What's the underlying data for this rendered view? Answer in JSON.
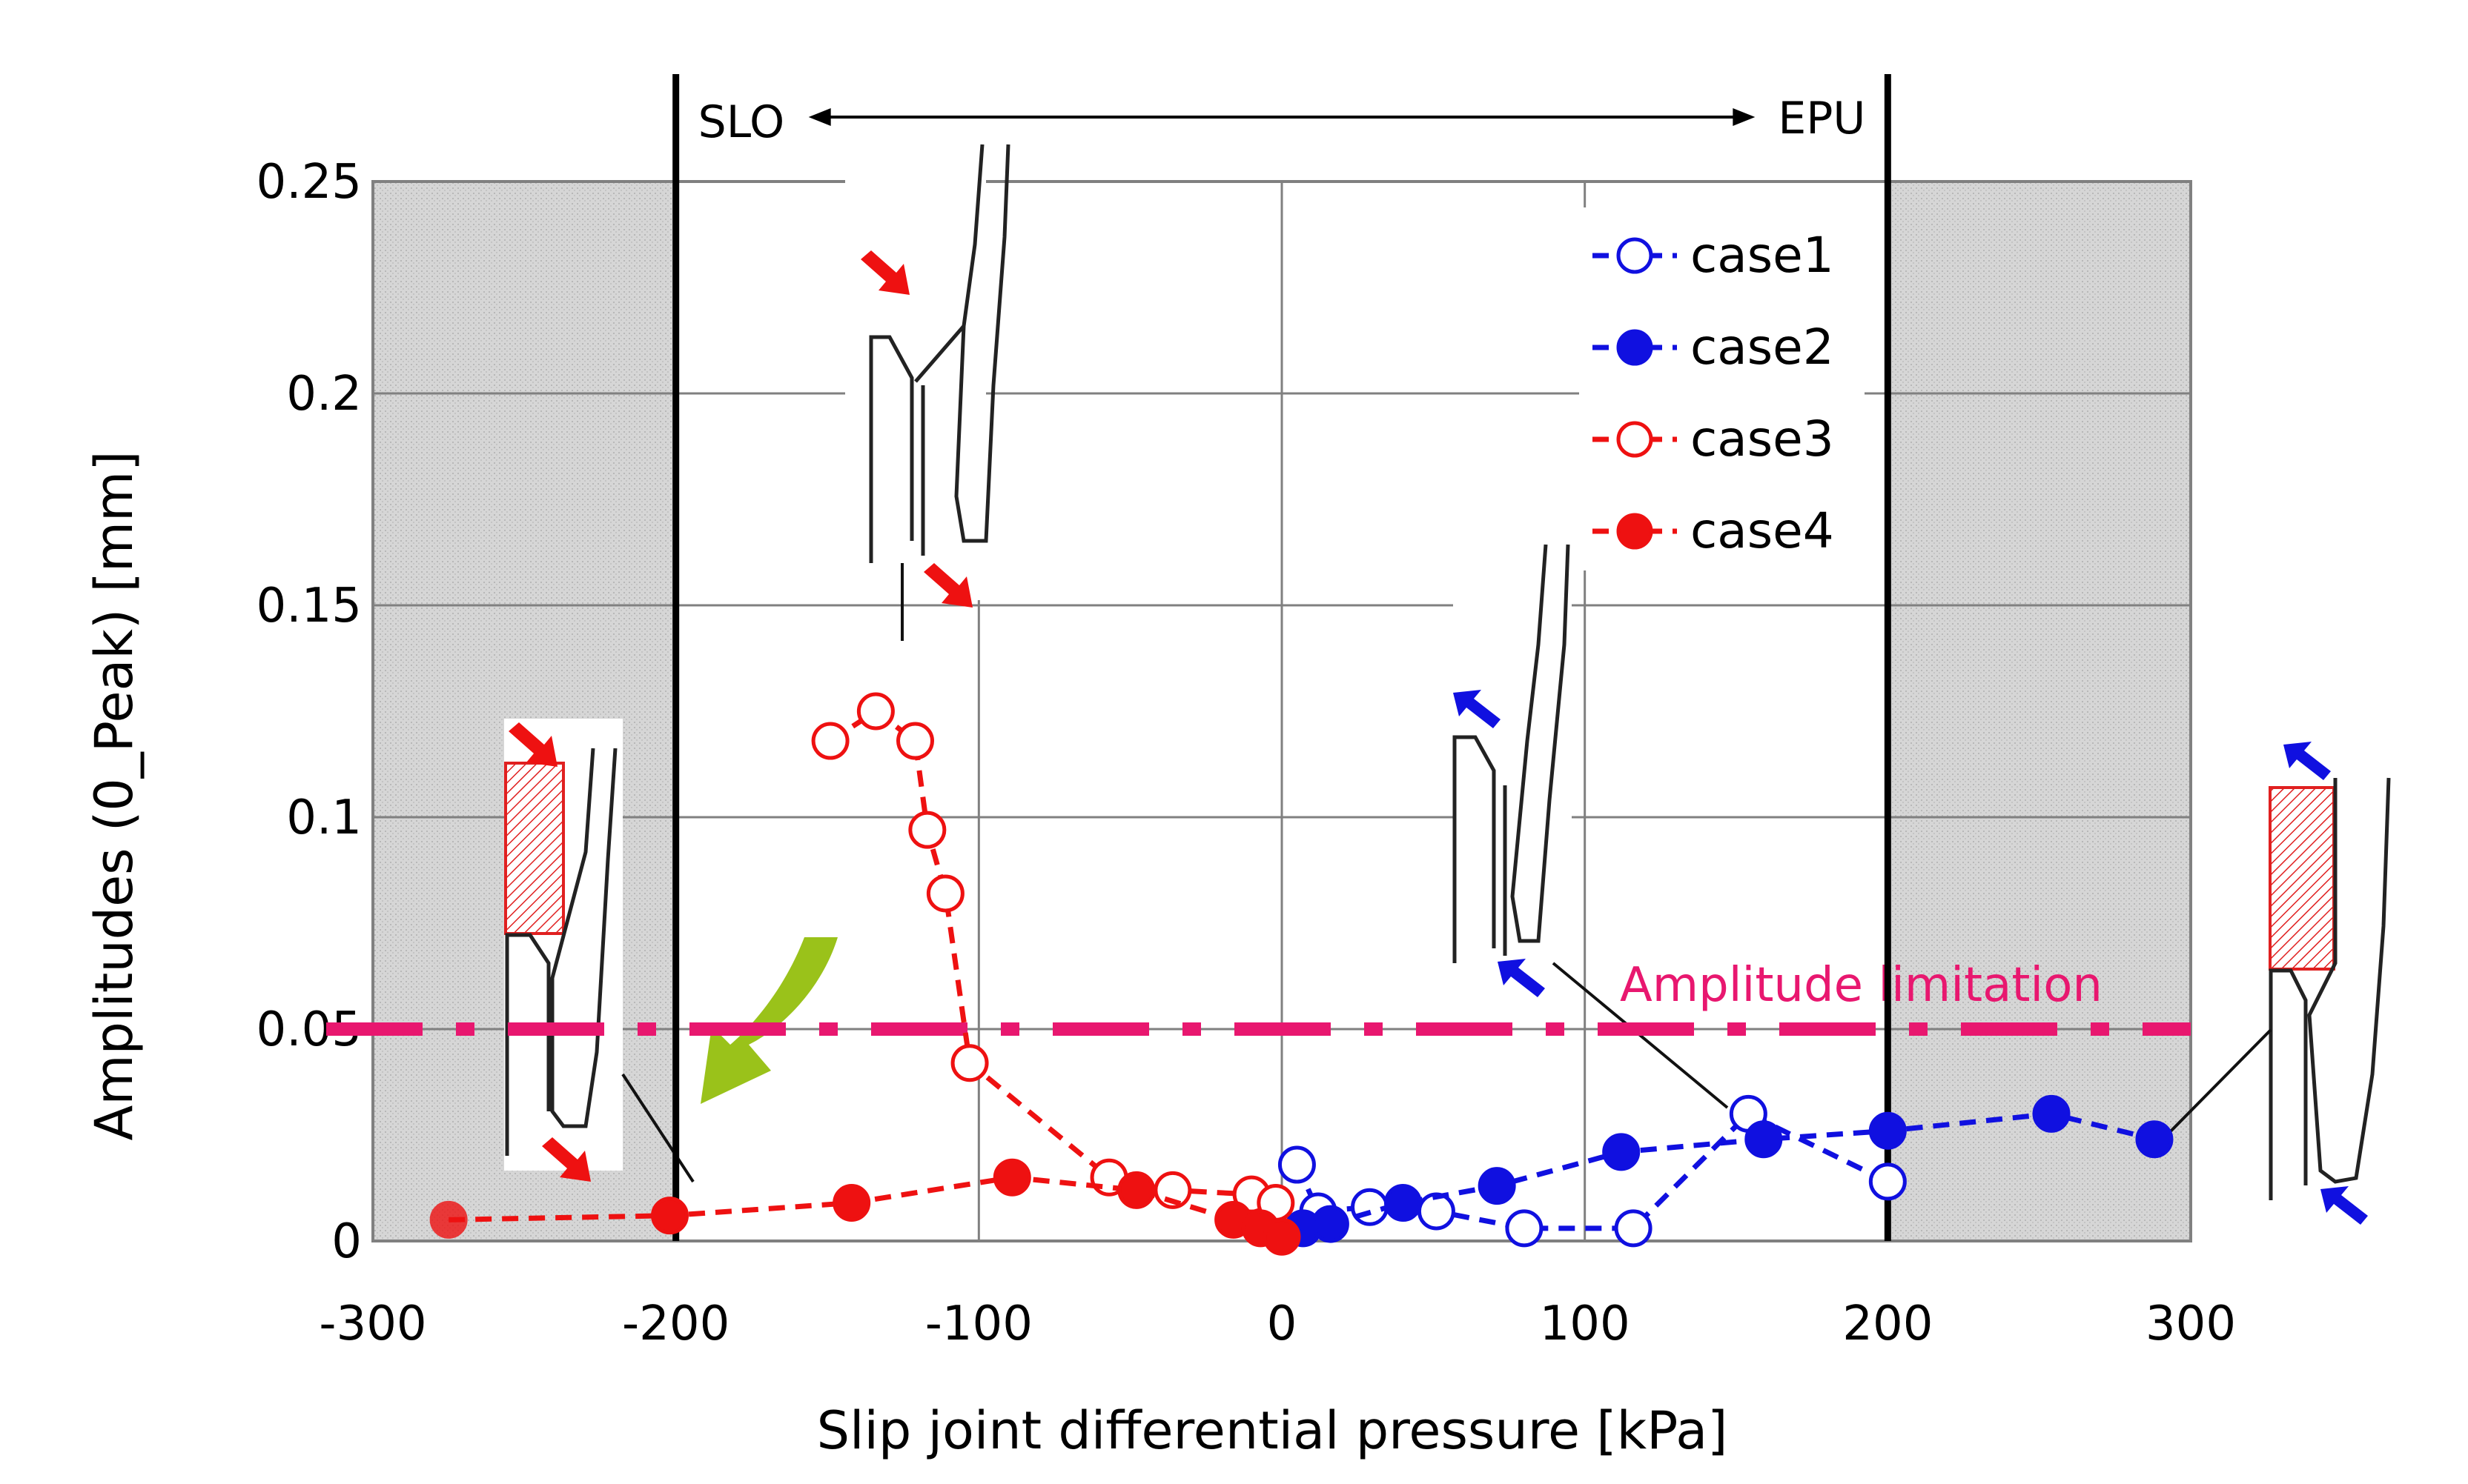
{
  "chart_data": {
    "type": "scatter",
    "title": "",
    "xlabel": "Slip joint differential pressure [kPa]",
    "ylabel": "Amplitudes (0_Peak) [mm]",
    "xlim": [
      -300,
      300
    ],
    "ylim": [
      0,
      0.25
    ],
    "x_ticks": [
      "-300",
      "-200",
      "-100",
      "0",
      "100",
      "200",
      "300"
    ],
    "y_ticks": [
      "0",
      "0.05",
      "0.1",
      "0.15",
      "0.2",
      "0.25"
    ],
    "grid": true,
    "legend_position": "top-right",
    "shaded_regions": [
      [
        -300,
        -200
      ],
      [
        200,
        300
      ]
    ],
    "vertical_markers": [
      {
        "x": -200,
        "label": "SLO"
      },
      {
        "x": 200,
        "label": "EPU"
      }
    ],
    "amplitude_limitation": {
      "y": 0.05,
      "label": "Amplitude limitation",
      "color": "#e8176f"
    },
    "series": [
      {
        "name": "case1",
        "color": "#1010e0",
        "filled": false,
        "points": [
          [
            5,
            0.018
          ],
          [
            12,
            0.007
          ],
          [
            29,
            0.008
          ],
          [
            51,
            0.007
          ],
          [
            80,
            0.003
          ],
          [
            116,
            0.003
          ],
          [
            154,
            0.03
          ],
          [
            200,
            0.014
          ]
        ]
      },
      {
        "name": "case2",
        "color": "#1010e0",
        "filled": true,
        "points": [
          [
            7,
            0.003
          ],
          [
            16,
            0.004
          ],
          [
            40,
            0.009
          ],
          [
            71,
            0.013
          ],
          [
            112,
            0.021
          ],
          [
            159,
            0.024
          ],
          [
            200,
            0.026
          ],
          [
            254,
            0.03
          ],
          [
            288,
            0.024
          ]
        ]
      },
      {
        "name": "case3",
        "color": "#ee1111",
        "filled": false,
        "points": [
          [
            -149,
            0.118
          ],
          [
            -134,
            0.125
          ],
          [
            -121,
            0.118
          ],
          [
            -117,
            0.097
          ],
          [
            -111,
            0.082
          ],
          [
            -103,
            0.042
          ],
          [
            -57,
            0.015
          ],
          [
            -36,
            0.012
          ],
          [
            -10,
            0.011
          ],
          [
            -2,
            0.009
          ]
        ]
      },
      {
        "name": "case4",
        "color": "#ee1111",
        "filled": true,
        "points": [
          [
            -275,
            0.005
          ],
          [
            -202,
            0.006
          ],
          [
            -142,
            0.009
          ],
          [
            -89,
            0.015
          ],
          [
            -48,
            0.012
          ],
          [
            -16,
            0.005
          ],
          [
            -7,
            0.003
          ],
          [
            0,
            0.001
          ]
        ]
      }
    ]
  }
}
